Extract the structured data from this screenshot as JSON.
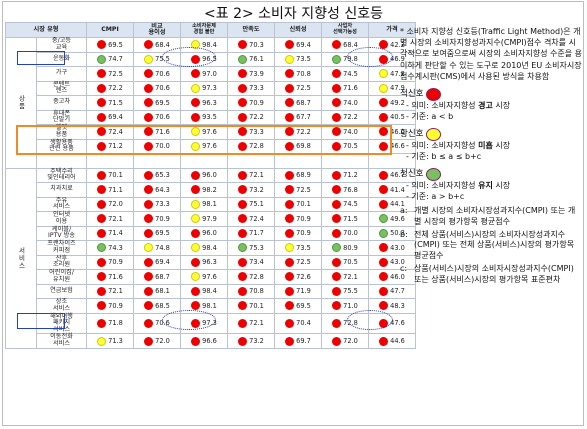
{
  "title": "<표 2> 소비자 지향성 신호등",
  "table": {
    "headers": [
      "시장 유형",
      "CMPI",
      "비교\n용이성",
      "소비자문제\n경험 불만",
      "만족도",
      "신뢰성",
      "사업자\n선택가능성",
      "가격"
    ],
    "groups": [
      {
        "label": "상품",
        "start": 0,
        "span": 9
      },
      {
        "label": "서비스",
        "start": 9,
        "span": 16
      }
    ],
    "rows": [
      {
        "item": "중/고등\n교육",
        "cells": [
          [
            "red",
            "69.5"
          ],
          [
            "red",
            "68.4"
          ],
          [
            "yellow",
            "98.4"
          ],
          [
            "red",
            "70.3"
          ],
          [
            "red",
            "69.4"
          ],
          [
            "red",
            "68.4"
          ],
          [
            "red",
            "42.2"
          ]
        ]
      },
      {
        "item": "운동화",
        "cells": [
          [
            "green",
            "74.7"
          ],
          [
            "yellow",
            "75.5"
          ],
          [
            "red",
            "96.5"
          ],
          [
            "green",
            "76.1"
          ],
          [
            "yellow",
            "73.5"
          ],
          [
            "green",
            "79.8"
          ],
          [
            "red",
            "46.9"
          ]
        ]
      },
      {
        "item": "가구",
        "cells": [
          [
            "red",
            "72.5"
          ],
          [
            "red",
            "70.6"
          ],
          [
            "red",
            "97.0"
          ],
          [
            "red",
            "73.9"
          ],
          [
            "red",
            "70.8"
          ],
          [
            "red",
            "74.5"
          ],
          [
            "yellow",
            "47.8"
          ]
        ]
      },
      {
        "item": "콘텐트\n렌즈",
        "cells": [
          [
            "red",
            "72.2"
          ],
          [
            "red",
            "70.6"
          ],
          [
            "yellow",
            "97.3"
          ],
          [
            "red",
            "73.3"
          ],
          [
            "red",
            "72.5"
          ],
          [
            "red",
            "71.6"
          ],
          [
            "yellow",
            "47.9"
          ]
        ]
      },
      {
        "item": "중고차",
        "cells": [
          [
            "red",
            "71.5"
          ],
          [
            "red",
            "69.5"
          ],
          [
            "red",
            "96.3"
          ],
          [
            "red",
            "70.9"
          ],
          [
            "red",
            "68.7"
          ],
          [
            "red",
            "74.0"
          ],
          [
            "red",
            "49.2"
          ]
        ]
      },
      {
        "item": "휴대폰\n단말기",
        "cells": [
          [
            "red",
            "69.4"
          ],
          [
            "red",
            "70.6"
          ],
          [
            "red",
            "93.5"
          ],
          [
            "red",
            "72.2"
          ],
          [
            "red",
            "67.7"
          ],
          [
            "red",
            "72.2"
          ],
          [
            "red",
            "40.5"
          ]
        ]
      },
      {
        "item": "헬멧\n용품",
        "cells": [
          [
            "red",
            "72.4"
          ],
          [
            "red",
            "71.6"
          ],
          [
            "yellow",
            "97.6"
          ],
          [
            "red",
            "73.3"
          ],
          [
            "red",
            "72.2"
          ],
          [
            "red",
            "74.0"
          ],
          [
            "red",
            "46.0"
          ]
        ]
      },
      {
        "item": "생활용품\n관련 용품",
        "cells": [
          [
            "red",
            "71.2"
          ],
          [
            "red",
            "70.0"
          ],
          [
            "yellow",
            "97.6"
          ],
          [
            "red",
            "72.8"
          ],
          [
            "red",
            "69.8"
          ],
          [
            "red",
            "70.5"
          ],
          [
            "red",
            "46.6"
          ]
        ]
      },
      {
        "item": "",
        "cells": [
          [
            "",
            ""
          ],
          [
            "",
            ""
          ],
          [
            "",
            ""
          ],
          [
            "",
            ""
          ],
          [
            "",
            ""
          ],
          [
            "",
            ""
          ],
          [
            "",
            ""
          ]
        ]
      },
      {
        "item": "주택수리\n및인테리어",
        "cells": [
          [
            "red",
            "70.1"
          ],
          [
            "red",
            "65.3"
          ],
          [
            "red",
            "96.0"
          ],
          [
            "red",
            "72.1"
          ],
          [
            "red",
            "68.9"
          ],
          [
            "red",
            "71.2"
          ],
          [
            "red",
            "46.7"
          ]
        ]
      },
      {
        "item": "치과치료",
        "cells": [
          [
            "red",
            "71.1"
          ],
          [
            "red",
            "64.3"
          ],
          [
            "red",
            "98.2"
          ],
          [
            "red",
            "73.2"
          ],
          [
            "red",
            "72.5"
          ],
          [
            "red",
            "76.8"
          ],
          [
            "red",
            "41.4"
          ]
        ]
      },
      {
        "item": "주유\n서비스",
        "cells": [
          [
            "red",
            "72.0"
          ],
          [
            "red",
            "73.3"
          ],
          [
            "yellow",
            "98.1"
          ],
          [
            "red",
            "75.1"
          ],
          [
            "red",
            "70.1"
          ],
          [
            "red",
            "74.5"
          ],
          [
            "red",
            "44.1"
          ]
        ]
      },
      {
        "item": "인터넷\n이용",
        "cells": [
          [
            "red",
            "72.1"
          ],
          [
            "red",
            "70.9"
          ],
          [
            "yellow",
            "97.9"
          ],
          [
            "red",
            "72.4"
          ],
          [
            "red",
            "70.9"
          ],
          [
            "red",
            "71.5"
          ],
          [
            "green",
            "49.6"
          ]
        ]
      },
      {
        "item": "케이블/\nIPTV 방송",
        "cells": [
          [
            "red",
            "71.4"
          ],
          [
            "red",
            "69.5"
          ],
          [
            "red",
            "96.0"
          ],
          [
            "red",
            "71.7"
          ],
          [
            "red",
            "70.9"
          ],
          [
            "red",
            "70.0"
          ],
          [
            "green",
            "50.3"
          ]
        ]
      },
      {
        "item": "프랜차이즈\n커피점",
        "cells": [
          [
            "green",
            "74.3"
          ],
          [
            "yellow",
            "74.8"
          ],
          [
            "yellow",
            "98.4"
          ],
          [
            "green",
            "75.3"
          ],
          [
            "yellow",
            "73.5"
          ],
          [
            "green",
            "80.9"
          ],
          [
            "red",
            "43.0"
          ]
        ]
      },
      {
        "item": "산후\n조리원",
        "cells": [
          [
            "red",
            "70.9"
          ],
          [
            "red",
            "69.4"
          ],
          [
            "red",
            "96.3"
          ],
          [
            "red",
            "73.4"
          ],
          [
            "red",
            "72.5"
          ],
          [
            "red",
            "70.5"
          ],
          [
            "red",
            "43.0"
          ]
        ]
      },
      {
        "item": "어린이집/\n유치원",
        "cells": [
          [
            "red",
            "71.6"
          ],
          [
            "red",
            "68.7"
          ],
          [
            "yellow",
            "97.6"
          ],
          [
            "red",
            "72.8"
          ],
          [
            "red",
            "72.6"
          ],
          [
            "red",
            "72.1"
          ],
          [
            "red",
            "46.0"
          ]
        ]
      },
      {
        "item": "연금보험",
        "cells": [
          [
            "red",
            "72.1"
          ],
          [
            "red",
            "68.1"
          ],
          [
            "red",
            "98.4"
          ],
          [
            "red",
            "70.8"
          ],
          [
            "red",
            "71.9"
          ],
          [
            "red",
            "75.5"
          ],
          [
            "red",
            "47.7"
          ]
        ]
      },
      {
        "item": "상조\n서비스",
        "cells": [
          [
            "red",
            "70.9"
          ],
          [
            "red",
            "68.5"
          ],
          [
            "red",
            "98.1"
          ],
          [
            "red",
            "70.1"
          ],
          [
            "red",
            "69.5"
          ],
          [
            "red",
            "71.0"
          ],
          [
            "red",
            "48.3"
          ]
        ]
      },
      {
        "item": "해외여행\n패키지\n서비스",
        "cells": [
          [
            "red",
            "71.8"
          ],
          [
            "red",
            "70.6"
          ],
          [
            "red",
            "97.3"
          ],
          [
            "red",
            "72.1"
          ],
          [
            "red",
            "70.4"
          ],
          [
            "red",
            "72.8"
          ],
          [
            "red",
            "47.6"
          ]
        ]
      },
      {
        "item": "이동전화\n서비스",
        "cells": [
          [
            "yellow",
            "71.3"
          ],
          [
            "red",
            "72.0"
          ],
          [
            "red",
            "96.6"
          ],
          [
            "red",
            "73.2"
          ],
          [
            "red",
            "69.7"
          ],
          [
            "red",
            "72.0"
          ],
          [
            "red",
            "44.6"
          ]
        ]
      }
    ]
  },
  "notes": {
    "intro": "* 소비자 지향성 신호등(Traffic Light Method)은 개별 시장의 소비자지향성과지수(CMPI)점수 격차를 시각적으로 보여줌으로써 시장의 소비자지향성 수준을 용이하게 판단할 수 있는 도구로 2010년 EU 소비자시장점수계시판(CMS)에서 사용된 방식을 차용함",
    "legends": [
      {
        "color": "red",
        "title": "적신호",
        "meaning_prefix": "- 의미: 소비자지향성 ",
        "meaning_bold": "경고",
        "meaning_suffix": " 시장",
        "criterion": "- 기준:  a  <  b"
      },
      {
        "color": "yellow",
        "title": "황신호",
        "meaning_prefix": "- 의미: 소비자지향성 ",
        "meaning_bold": "미흡",
        "meaning_suffix": " 시장",
        "criterion": "- 기준:  b  ≤  a  ≤  b+c"
      },
      {
        "color": "green",
        "title": "청신호",
        "meaning_prefix": "- 의미: 소비자지향성 ",
        "meaning_bold": "유지",
        "meaning_suffix": " 시장",
        "criterion": "- 기준:  a  >  b+c"
      }
    ],
    "footnotes": [
      {
        "key": "a:",
        "text": "개별 시장의 소비자시장성과지수(CMPI) 또는 개별 시장의 평가항목 평균점수"
      },
      {
        "key": "b:",
        "text": "전체 상품(서비스)시장의 소비자시장성과지수(CMPI) 또는 전체 상품(서비스)시장의 평가항목 평균점수"
      },
      {
        "key": "c:",
        "text": "상품(서비스)시장의 소비자시장성과지수(CMPI) 또는 상품(서비스)시장의 평가항목 표준편차"
      }
    ]
  }
}
